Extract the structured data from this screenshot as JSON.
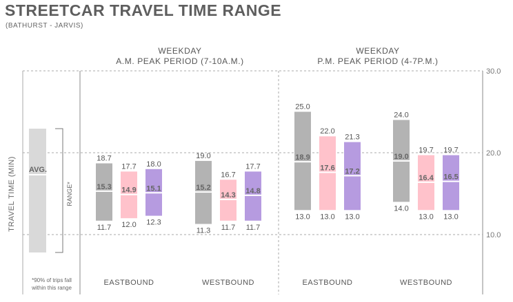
{
  "chart_data": {
    "type": "range-bar",
    "title": "STREETCAR TRAVEL TIME RANGE",
    "subtitle": "(BATHURST - JARVIS)",
    "ylabel": "TRAVEL TIME (MIN)",
    "ylim": [
      8.5,
      30
    ],
    "yticks": [
      "10.0",
      "20.0",
      "30.0"
    ],
    "ytick_values": [
      10,
      20,
      30
    ],
    "periods": [
      {
        "label_line1": "WEEKDAY",
        "label_line2": "A.M. PEAK PERIOD (7-10A.M.)"
      },
      {
        "label_line1": "WEEKDAY",
        "label_line2": "P.M. PEAK PERIOD (4-7P.M.)"
      }
    ],
    "directions": [
      "EASTBOUND",
      "WESTBOUND",
      "EASTBOUND",
      "WESTBOUND"
    ],
    "groups": [
      {
        "direction": "EASTBOUND",
        "period": 0,
        "bars": [
          {
            "color": "#b3b3b3",
            "max": "18.7",
            "avg": "15.3",
            "min": "11.7"
          },
          {
            "color": "#ffc2cb",
            "max": "17.7",
            "avg": "14.9",
            "min": "12.0"
          },
          {
            "color": "#b69be0",
            "max": "18.0",
            "avg": "15.1",
            "min": "12.3"
          }
        ]
      },
      {
        "direction": "WESTBOUND",
        "period": 0,
        "bars": [
          {
            "color": "#b3b3b3",
            "max": "19.0",
            "avg": "15.2",
            "min": "11.3"
          },
          {
            "color": "#ffc2cb",
            "max": "16.7",
            "avg": "14.3",
            "min": "11.7"
          },
          {
            "color": "#b69be0",
            "max": "17.7",
            "avg": "14.8",
            "min": "11.7"
          }
        ]
      },
      {
        "direction": "EASTBOUND",
        "period": 1,
        "bars": [
          {
            "color": "#b3b3b3",
            "max": "25.0",
            "avg": "18.9",
            "min": "13.0"
          },
          {
            "color": "#ffc2cb",
            "max": "22.0",
            "avg": "17.6",
            "min": "13.0"
          },
          {
            "color": "#b69be0",
            "max": "21.3",
            "avg": "17.2",
            "min": "13.0"
          }
        ]
      },
      {
        "direction": "WESTBOUND",
        "period": 1,
        "bars": [
          {
            "color": "#b3b3b3",
            "max": "24.0",
            "avg": "19.0",
            "min": "14.0"
          },
          {
            "color": "#ffc2cb",
            "max": "19.7",
            "avg": "16.4",
            "min": "13.0"
          },
          {
            "color": "#b69be0",
            "max": "19.7",
            "avg": "16.5",
            "min": "13.0"
          }
        ]
      }
    ],
    "legend": {
      "avg_label": "AVG.",
      "range_label": "RANGE*",
      "footnote_line1": "*90% of trips fall",
      "footnote_line2": "within this range",
      "color": "#d9d9d9"
    },
    "grid": true
  }
}
